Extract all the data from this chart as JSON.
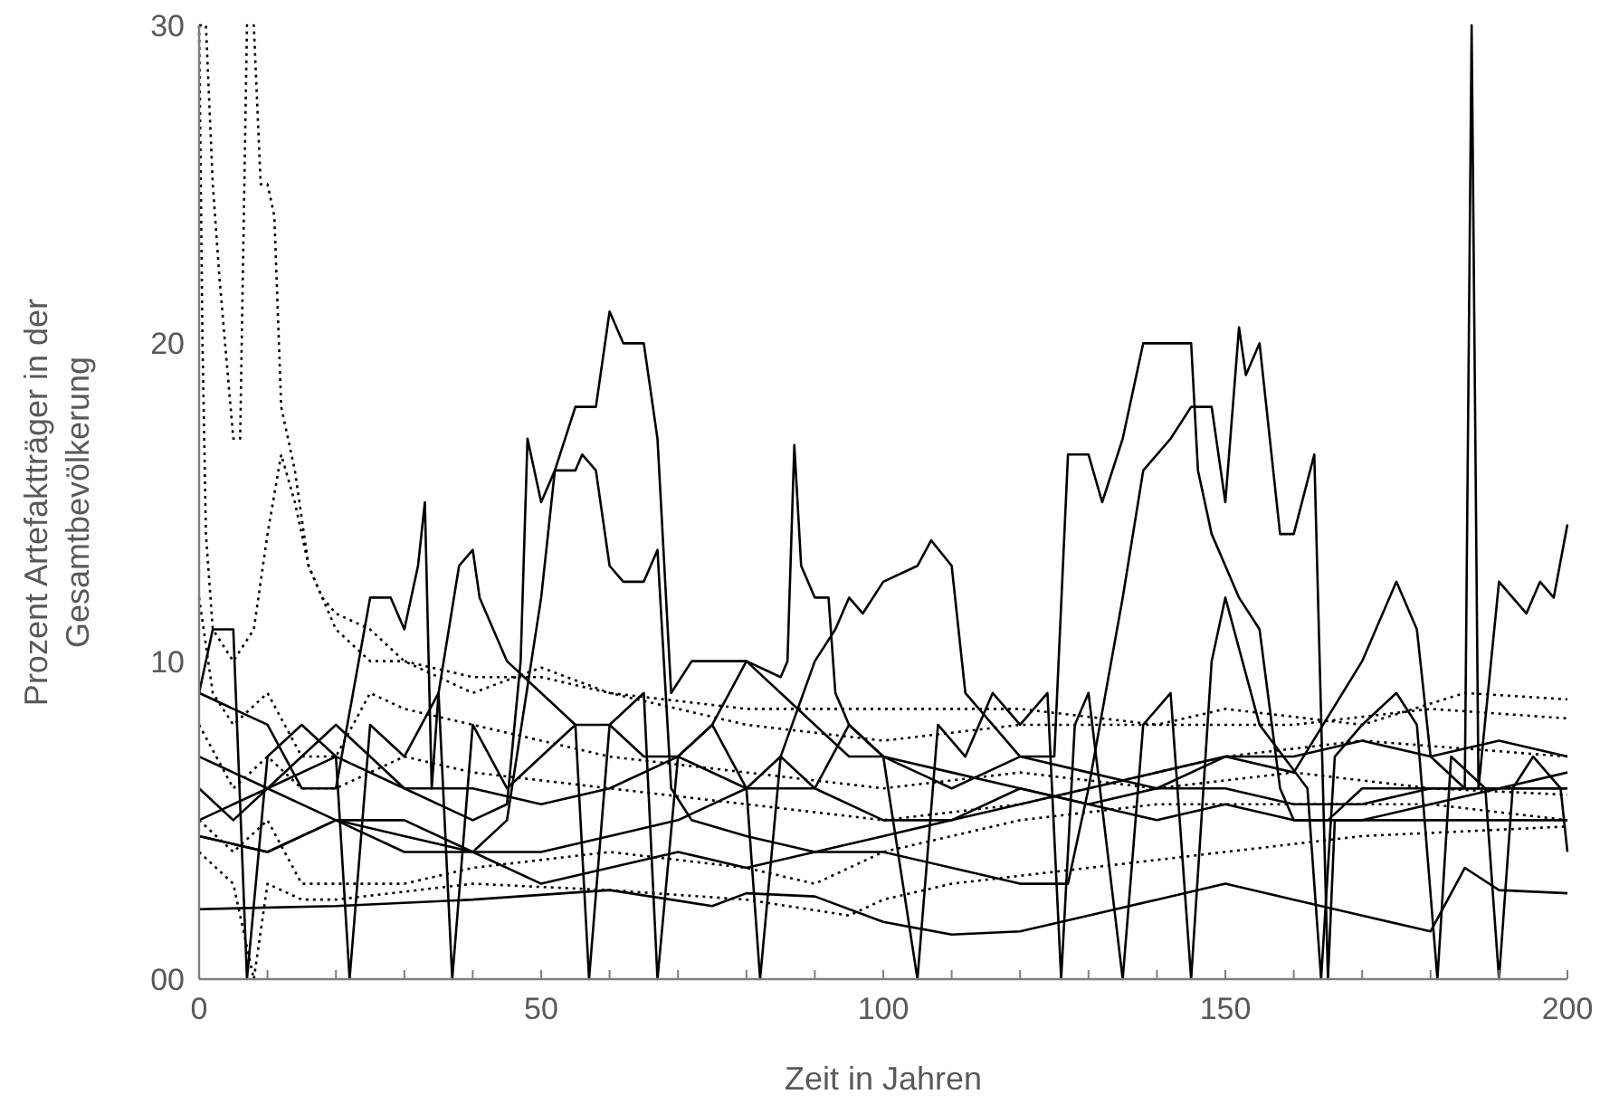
{
  "chart_data": {
    "type": "line",
    "xlabel": "Zeit in Jahren",
    "ylabel": "Prozent Artefaktträger in der Gesamtbevölkerung",
    "xlim": [
      0,
      200
    ],
    "ylim": [
      0,
      30
    ],
    "xticks": [
      0,
      {
        "value": 10,
        "label": null
      },
      {
        "value": 20,
        "label": null
      },
      {
        "value": 30,
        "label": null
      },
      {
        "value": 40,
        "label": null
      },
      50,
      {
        "value": 60,
        "label": null
      },
      {
        "value": 70,
        "label": null
      },
      {
        "value": 80,
        "label": null
      },
      {
        "value": 90,
        "label": null
      },
      100,
      {
        "value": 110,
        "label": null
      },
      {
        "value": 120,
        "label": null
      },
      {
        "value": 130,
        "label": null
      },
      {
        "value": 140,
        "label": null
      },
      150,
      {
        "value": 160,
        "label": null
      },
      {
        "value": 170,
        "label": null
      },
      {
        "value": 180,
        "label": null
      },
      {
        "value": 190,
        "label": null
      },
      200
    ],
    "yticks": [
      {
        "value": 0,
        "label": "00"
      },
      10,
      20,
      30
    ],
    "grid": false,
    "line_style": "solid",
    "series": [
      {
        "color": "#000000",
        "x": [
          0,
          5,
          10,
          15,
          20,
          25,
          30,
          40,
          45,
          47,
          48,
          50,
          52,
          55,
          58,
          60,
          62,
          65,
          67,
          69,
          72,
          80,
          85,
          90,
          95,
          100,
          110,
          120,
          125,
          127,
          130,
          132,
          135,
          138,
          145,
          146,
          148,
          150,
          152,
          155,
          158,
          160,
          165,
          170,
          180,
          190,
          200
        ],
        "values": [
          6,
          5,
          6,
          7,
          8,
          7,
          6,
          5,
          5.5,
          10,
          17,
          15,
          16,
          18,
          18,
          21,
          20,
          20,
          17,
          9,
          10,
          10,
          9,
          8,
          7,
          7,
          6,
          7,
          7,
          16.5,
          16.5,
          15,
          17,
          20,
          20,
          16,
          14,
          13,
          12,
          11,
          6,
          5,
          5,
          6,
          6,
          6,
          6
        ]
      },
      {
        "color": "#000000",
        "x": [
          0,
          10,
          20,
          30,
          40,
          45,
          50,
          52,
          55,
          56,
          58,
          60,
          62,
          65,
          67,
          69,
          72,
          80,
          90,
          100,
          110,
          120,
          127,
          130,
          135,
          138,
          140,
          142,
          145,
          148,
          150,
          152,
          153,
          155,
          157,
          158,
          160,
          163,
          165,
          166,
          170,
          180,
          190,
          200
        ],
        "values": [
          4.5,
          4,
          5,
          4,
          4,
          5,
          12,
          16,
          16,
          16.5,
          16,
          13,
          12.5,
          12.5,
          13.5,
          6,
          5,
          4.5,
          4,
          4,
          3.5,
          3,
          3,
          6,
          12,
          16,
          16.5,
          17,
          18,
          18,
          15,
          20.5,
          19,
          20,
          16,
          14,
          14,
          16.5,
          0,
          5,
          5,
          5,
          5,
          5
        ]
      },
      {
        "color": "#000000",
        "x": [
          0,
          10,
          20,
          30,
          40,
          50,
          60,
          70,
          80,
          90,
          100,
          110,
          120,
          130,
          140,
          150,
          160,
          170,
          175,
          178,
          180,
          185,
          186,
          187,
          190,
          192,
          194,
          196,
          198,
          200
        ],
        "values": [
          4.5,
          4,
          5,
          5,
          4,
          3,
          3.5,
          4,
          3.5,
          4,
          4.5,
          5,
          6,
          5.5,
          6,
          7,
          6.5,
          10,
          12.5,
          11,
          7,
          6,
          30,
          6,
          12.5,
          12,
          11.5,
          12.5,
          12,
          14.3
        ]
      },
      {
        "color": "#000000",
        "x": [
          0,
          10,
          15,
          20,
          25,
          28,
          30,
          32,
          33,
          34,
          35,
          38,
          40,
          41,
          45,
          50,
          55,
          60,
          65,
          70,
          80,
          90,
          100,
          110,
          120,
          130,
          140,
          150,
          160,
          170,
          180,
          190,
          200
        ],
        "values": [
          9,
          8,
          6,
          6,
          12,
          12,
          11,
          13,
          15,
          6,
          9,
          13,
          13.5,
          12,
          10,
          9,
          8,
          8,
          7,
          7,
          6,
          6,
          5,
          5,
          5.5,
          6,
          6.5,
          7,
          7,
          7.5,
          7,
          7.5,
          7
        ]
      },
      {
        "color": "#000000",
        "x": [
          0,
          10,
          20,
          30,
          40,
          50,
          60,
          70,
          80,
          85,
          90,
          93,
          95,
          97,
          100,
          105,
          107,
          110,
          112,
          120,
          130,
          140,
          150,
          160,
          170,
          180,
          190,
          200
        ],
        "values": [
          7,
          6,
          5,
          4.5,
          4,
          4,
          4.5,
          5,
          6,
          7,
          10,
          11,
          12,
          11.5,
          12.5,
          13,
          13.8,
          13,
          9,
          7,
          6.5,
          6,
          6,
          5.5,
          5.5,
          6,
          6,
          6.5
        ]
      },
      {
        "color": "#000000",
        "x": [
          0,
          10,
          20,
          30,
          40,
          50,
          60,
          70,
          75,
          80,
          85,
          86,
          87,
          88,
          90,
          92,
          93,
          95,
          100,
          110,
          120,
          130,
          140,
          150,
          160,
          170,
          180,
          190,
          200
        ],
        "values": [
          5,
          6,
          7,
          6,
          6,
          5.5,
          6,
          7,
          8,
          10,
          9.5,
          10,
          16.8,
          13,
          12,
          12,
          9,
          8,
          7,
          6.5,
          6,
          5.5,
          5,
          5.5,
          5,
          5,
          5.5,
          6,
          6
        ]
      },
      {
        "color": "#000000",
        "x": [
          0,
          20,
          40,
          60,
          75,
          80,
          90,
          100,
          110,
          120,
          130,
          140,
          150,
          160,
          170,
          180,
          185,
          190,
          200
        ],
        "values": [
          2.2,
          2.3,
          2.5,
          2.8,
          2.3,
          2.7,
          2.6,
          1.8,
          1.4,
          1.5,
          2,
          2.5,
          3,
          2.5,
          2,
          1.5,
          3.5,
          2.8,
          2.7
        ]
      },
      {
        "color": "#000000",
        "x": [
          0,
          2,
          5,
          7,
          10,
          15,
          20,
          22,
          25,
          30,
          35,
          37,
          40,
          45,
          50,
          55,
          57,
          60,
          65,
          67,
          70,
          75,
          80,
          82,
          85,
          90,
          95,
          100,
          105,
          108,
          112,
          116,
          120,
          124,
          126,
          128,
          130,
          135,
          138,
          142,
          145,
          148,
          150,
          155,
          162,
          164,
          166,
          170,
          175,
          178,
          181,
          183,
          188,
          190,
          192,
          195,
          199,
          200
        ],
        "values": [
          9,
          11,
          11,
          0,
          7,
          8,
          7,
          0,
          8,
          7,
          9,
          0,
          8,
          6,
          7,
          8,
          0,
          8,
          9,
          0,
          7,
          8,
          6,
          0,
          7,
          6,
          8,
          7,
          0,
          8,
          7,
          9,
          8,
          9,
          0,
          8,
          9,
          0,
          8,
          9,
          0,
          10,
          12,
          8,
          6,
          0,
          7,
          8,
          9,
          8,
          0,
          7,
          6,
          0,
          6,
          7,
          6,
          4
        ]
      },
      {
        "color": "#000000",
        "line_style": "dotted",
        "x": [
          0,
          1,
          2,
          3,
          5,
          6,
          7,
          8,
          9,
          10,
          11,
          12,
          14,
          16,
          18,
          20,
          25,
          30,
          40,
          50,
          60,
          80,
          100,
          120,
          140,
          160,
          180,
          200
        ],
        "values": [
          30,
          30,
          25,
          22,
          17,
          17,
          30,
          30,
          25,
          25,
          24,
          18,
          16,
          13,
          12,
          11,
          10,
          10,
          9.5,
          9.5,
          9,
          8.5,
          8.5,
          8.5,
          8,
          8,
          8.5,
          8.2
        ]
      },
      {
        "color": "#000000",
        "line_style": "dotted",
        "x": [
          0,
          0.5,
          1,
          2,
          5,
          8,
          10,
          12,
          14,
          16,
          18,
          20,
          25,
          30,
          40,
          50,
          60,
          80,
          100,
          120,
          140,
          150,
          170,
          185,
          200
        ],
        "values": [
          30,
          20,
          14,
          11,
          10,
          11,
          14,
          16.5,
          15,
          13,
          12,
          11.5,
          11,
          10,
          9,
          9.8,
          9,
          8,
          7.5,
          8,
          8,
          8.5,
          8,
          9,
          8.8
        ]
      },
      {
        "color": "#000000",
        "line_style": "dotted",
        "x": [
          0,
          2,
          5,
          10,
          15,
          20,
          25,
          30,
          40,
          60,
          80,
          100,
          120,
          140,
          160,
          180,
          200
        ],
        "values": [
          12,
          9,
          8,
          9,
          7,
          7,
          9,
          8.5,
          8,
          7,
          6.5,
          6,
          6.5,
          6,
          6.5,
          6,
          5.8
        ]
      },
      {
        "color": "#000000",
        "line_style": "dotted",
        "x": [
          0,
          5,
          10,
          15,
          20,
          30,
          40,
          60,
          80,
          90,
          100,
          120,
          140,
          160,
          180,
          200
        ],
        "values": [
          5,
          4,
          5,
          3,
          3,
          3,
          3.5,
          4,
          3.5,
          3,
          4,
          5,
          5.5,
          5.5,
          5.5,
          5
        ]
      },
      {
        "color": "#000000",
        "line_style": "dotted",
        "x": [
          0,
          5,
          10,
          15,
          20,
          30,
          40,
          60,
          80,
          100,
          120,
          130,
          150,
          170,
          200
        ],
        "values": [
          8,
          6,
          7,
          6,
          6,
          7,
          6.5,
          6,
          5.5,
          5,
          5.5,
          6,
          7,
          7.5,
          7
        ]
      },
      {
        "color": "#000000",
        "line_style": "dotted",
        "x": [
          0,
          5,
          8,
          10,
          15,
          20,
          40,
          60,
          80,
          95,
          100,
          110,
          130,
          150,
          170,
          200
        ],
        "values": [
          4,
          3,
          0,
          3,
          2.5,
          2.5,
          3,
          2.8,
          2.5,
          2,
          2.5,
          3,
          3.5,
          4,
          4.5,
          4.8
        ]
      }
    ]
  }
}
